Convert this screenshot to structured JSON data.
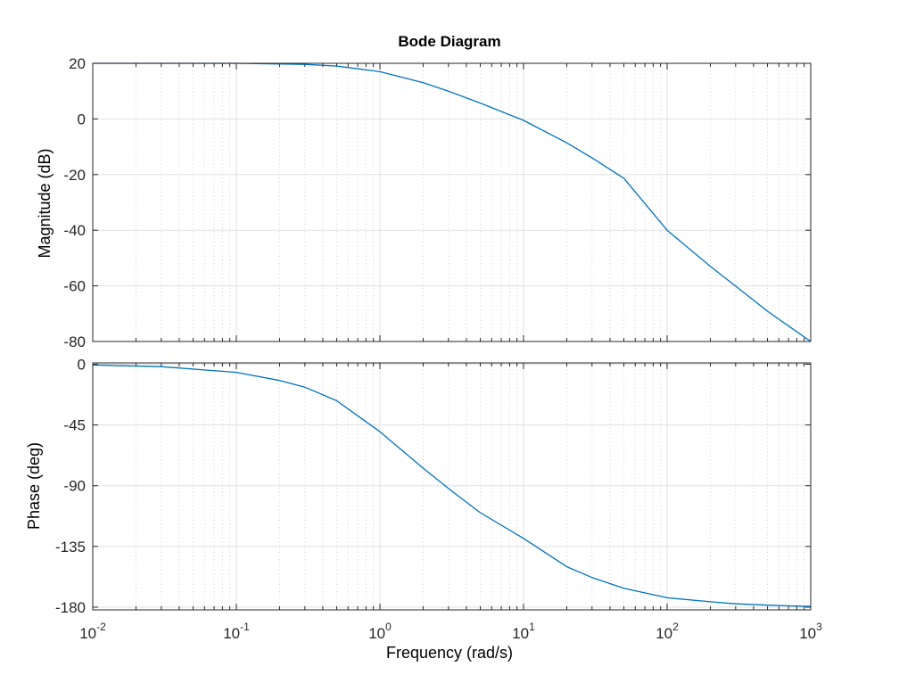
{
  "chart_data": {
    "type": "line",
    "title": "Bode Diagram",
    "xlabel": "Frequency  (rad/s)",
    "xscale": "log",
    "xlim": [
      0.01,
      1000
    ],
    "x_ticks": [
      {
        "base": "10",
        "exp": "-2"
      },
      {
        "base": "10",
        "exp": "-1"
      },
      {
        "base": "10",
        "exp": "0"
      },
      {
        "base": "10",
        "exp": "1"
      },
      {
        "base": "10",
        "exp": "2"
      },
      {
        "base": "10",
        "exp": "3"
      }
    ],
    "grid": true,
    "line_color": "#0072bd",
    "subplots": [
      {
        "name": "magnitude",
        "ylabel": "Magnitude (dB)",
        "ylim": [
          -80,
          20
        ],
        "yticks": [
          20,
          0,
          -20,
          -40,
          -60,
          -80
        ],
        "x": [
          0.01,
          0.03,
          0.1,
          0.3,
          0.5,
          1,
          2,
          3,
          5,
          10,
          20,
          30,
          50,
          100,
          200,
          300,
          500,
          1000
        ],
        "y": [
          20,
          20,
          20,
          19.6,
          19,
          17,
          13,
          10,
          5.7,
          -0.5,
          -8.6,
          -14,
          -21.3,
          -40,
          -53,
          -60.1,
          -69.1,
          -80
        ]
      },
      {
        "name": "phase",
        "ylabel": "Phase (deg)",
        "ylim": [
          -182,
          1
        ],
        "yticks": [
          0,
          -45,
          -90,
          -135,
          -180
        ],
        "x": [
          0.01,
          0.03,
          0.1,
          0.2,
          0.3,
          0.5,
          1,
          2,
          3,
          5,
          10,
          20,
          30,
          50,
          100,
          200,
          300,
          500,
          1000
        ],
        "y": [
          -0.6,
          -1.8,
          -6,
          -12,
          -17,
          -27,
          -50,
          -77,
          -92,
          -110,
          -129,
          -150,
          -158,
          -166,
          -173,
          -176,
          -177.5,
          -178.5,
          -179.5
        ]
      }
    ]
  }
}
